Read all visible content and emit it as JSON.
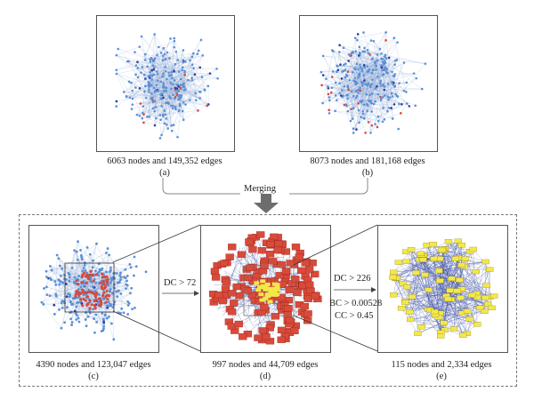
{
  "top": {
    "a": {
      "caption": "6063 nodes and 149,352 edges",
      "label": "(a)"
    },
    "b": {
      "caption": "8073 nodes and 181,168 edges",
      "label": "(b)"
    },
    "merge_label": "Merging"
  },
  "bottom": {
    "c": {
      "caption": "4390 nodes and 123,047 edges",
      "label": "(c)"
    },
    "d": {
      "caption": "997 nodes and 44,709 edges",
      "label": "(d)"
    },
    "e": {
      "caption": "115 nodes and 2,334 edges",
      "label": "(e)"
    }
  },
  "thresholds": {
    "cd": "DC > 72",
    "de_dc": "DC > 226",
    "de_bc": "BC > 0.00528",
    "de_cc": "CC > 0.45"
  },
  "colors": {
    "edge": "#8fa9d6",
    "node_blue": "#5b8fd6",
    "node_red": "#d84a3a",
    "node_yellow": "#f3e84a",
    "dark_blue": "#2b3f9a",
    "arrow": "#6d6d6d"
  }
}
